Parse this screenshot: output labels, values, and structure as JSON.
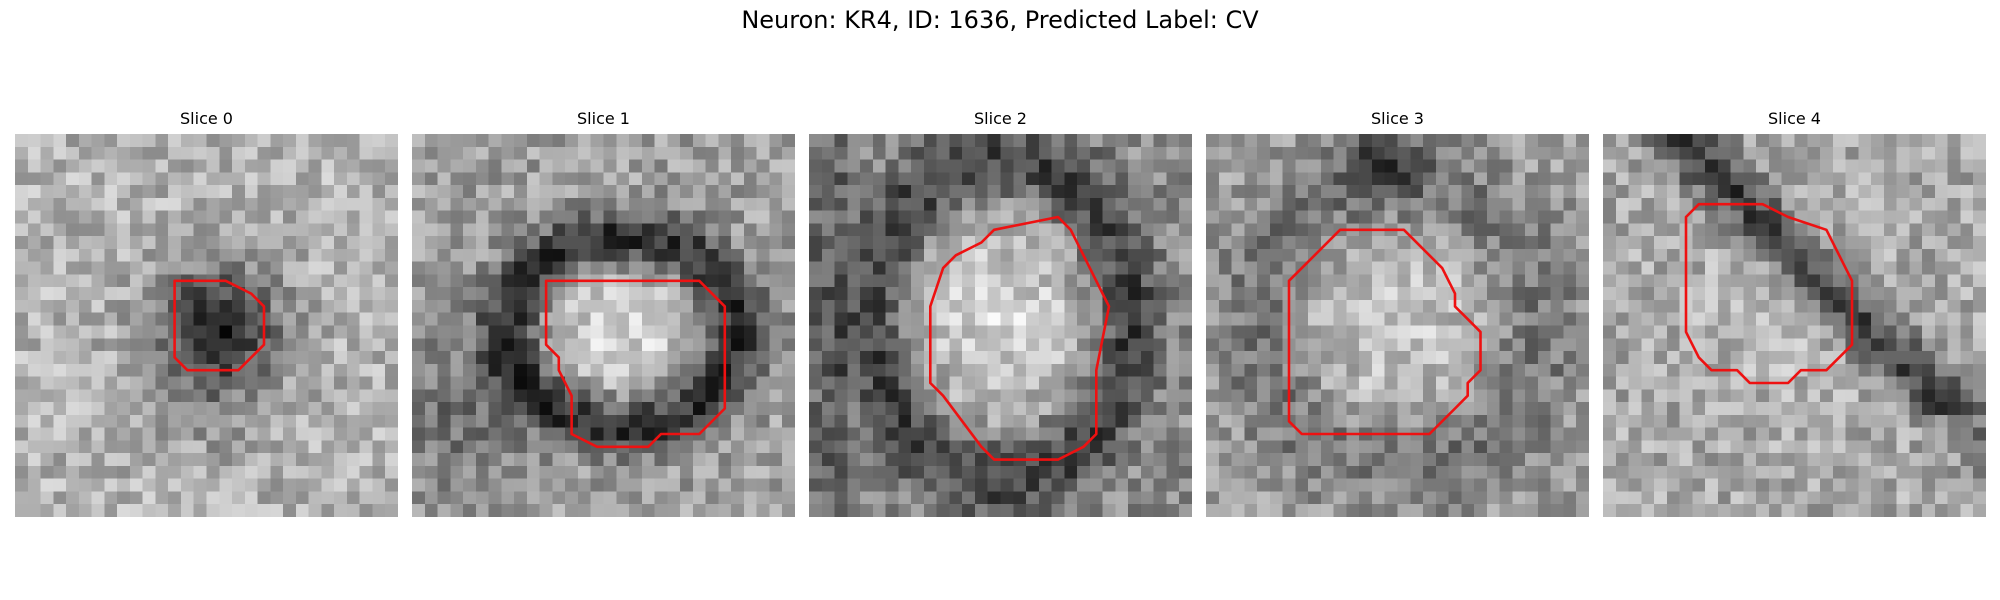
{
  "figure": {
    "title": "Neuron: KR4, ID: 1636, Predicted Label: CV",
    "contour_color": "#ee1111"
  },
  "panels": [
    {
      "title": "Slice 0"
    },
    {
      "title": "Slice 1"
    },
    {
      "title": "Slice 2"
    },
    {
      "title": "Slice 3"
    },
    {
      "title": "Slice 4"
    }
  ]
}
